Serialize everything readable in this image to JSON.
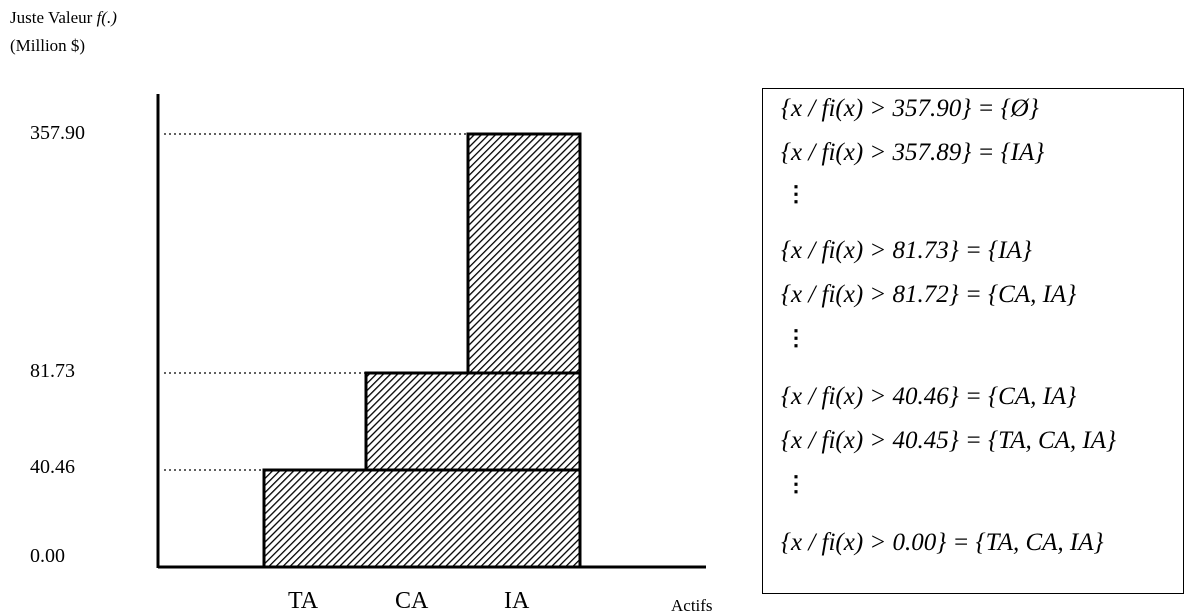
{
  "y_axis": {
    "label_prefix": "Juste Valeur ",
    "label_function": "f(.)",
    "unit": "(Million $)"
  },
  "x_axis": {
    "label": "Actifs"
  },
  "chart_data": {
    "type": "bar",
    "categories": [
      "TA",
      "CA",
      "IA"
    ],
    "values": [
      40.46,
      81.73,
      357.9
    ],
    "tick_labels": [
      "357.90",
      "81.73",
      "40.46",
      "0.00"
    ],
    "xlabel": "Actifs",
    "ylabel": "Juste Valeur f(.) (Million $)",
    "step_levels": [
      0.0,
      40.46,
      81.73,
      357.9
    ],
    "fill_pattern": "diagonal-hatch",
    "bar_color": "#000000"
  },
  "set_box": {
    "lines": [
      "{x / fi(x) > 357.90} = {Ø}",
      "{x / fi(x) > 357.89} = {IA}",
      "⋮",
      "{x / fi(x) > 81.73} = {IA}",
      "{x / fi(x) > 81.72} = {CA, IA}",
      "⋮",
      "{x / fi(x) > 40.46} = {CA, IA}",
      "{x / fi(x) > 40.45} = {TA, CA, IA}",
      "⋮",
      "{x / fi(x) > 0.00} = {TA, CA, IA}"
    ]
  }
}
